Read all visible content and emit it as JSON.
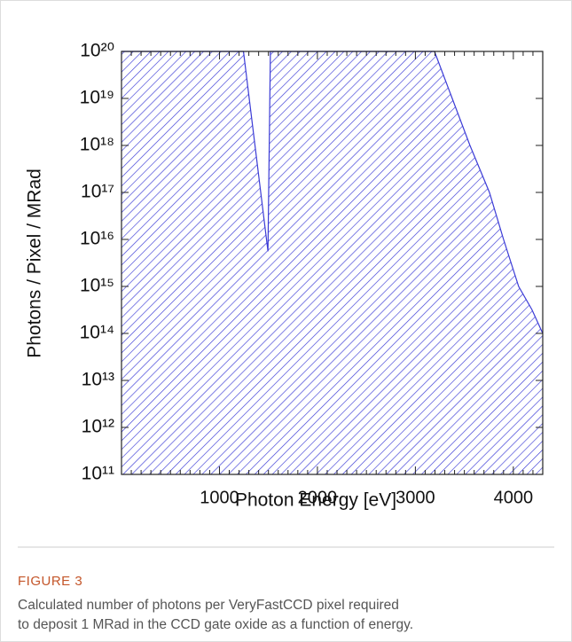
{
  "chart_data": {
    "type": "area",
    "xlabel": "Photon Energy [eV]",
    "ylabel": "Photons / Pixel / MRad",
    "x": [
      0,
      1245,
      1495,
      1520,
      3195,
      3557,
      3756,
      3900,
      4054,
      4190,
      4300
    ],
    "series": [
      {
        "color": "#3b3bd6",
        "values": [
          1e+20,
          1e+20,
          5600000000000000.0,
          1e+20,
          1e+20,
          1e+18,
          1e+17,
          1e+16,
          1000000000000000.0,
          320000000000000.0,
          100000000000000.0
        ]
      }
    ],
    "xlim": [
      0,
      4300
    ],
    "ylim": [
      100000000000.0,
      1e+20
    ],
    "log_y": true,
    "xticks": [
      1000,
      2000,
      3000,
      4000
    ],
    "xminorticks": [
      100,
      200,
      300,
      400,
      500,
      600,
      700,
      800,
      900,
      1100,
      1200,
      1300,
      1400,
      1500,
      1600,
      1700,
      1800,
      1900,
      2100,
      2200,
      2300,
      2400,
      2500,
      2600,
      2700,
      2800,
      2900,
      3100,
      3200,
      3300,
      3400,
      3500,
      3600,
      3700,
      3800,
      3900,
      4100,
      4200
    ],
    "yticks": [
      {
        "value": 100000000000.0,
        "label": "10¹¹"
      },
      {
        "value": 1000000000000.0,
        "label": "10¹²"
      },
      {
        "value": 10000000000000.0,
        "label": "10¹³"
      },
      {
        "value": 100000000000000.0,
        "label": "10¹⁴"
      },
      {
        "value": 1000000000000000.0,
        "label": "10¹⁵"
      },
      {
        "value": 1e+16,
        "label": "10¹⁶"
      },
      {
        "value": 1e+17,
        "label": "10¹⁷"
      },
      {
        "value": 1e+18,
        "label": "10¹⁸"
      },
      {
        "value": 1e+19,
        "label": "10¹⁹"
      },
      {
        "value": 1e+20,
        "label": "10²⁰"
      }
    ],
    "figure_label": "FIGURE 3",
    "caption": [
      "Calculated number of photons per VeryFastCCD pixel required",
      "to deposit 1 MRad in the CCD gate oxide as a function of energy."
    ]
  }
}
